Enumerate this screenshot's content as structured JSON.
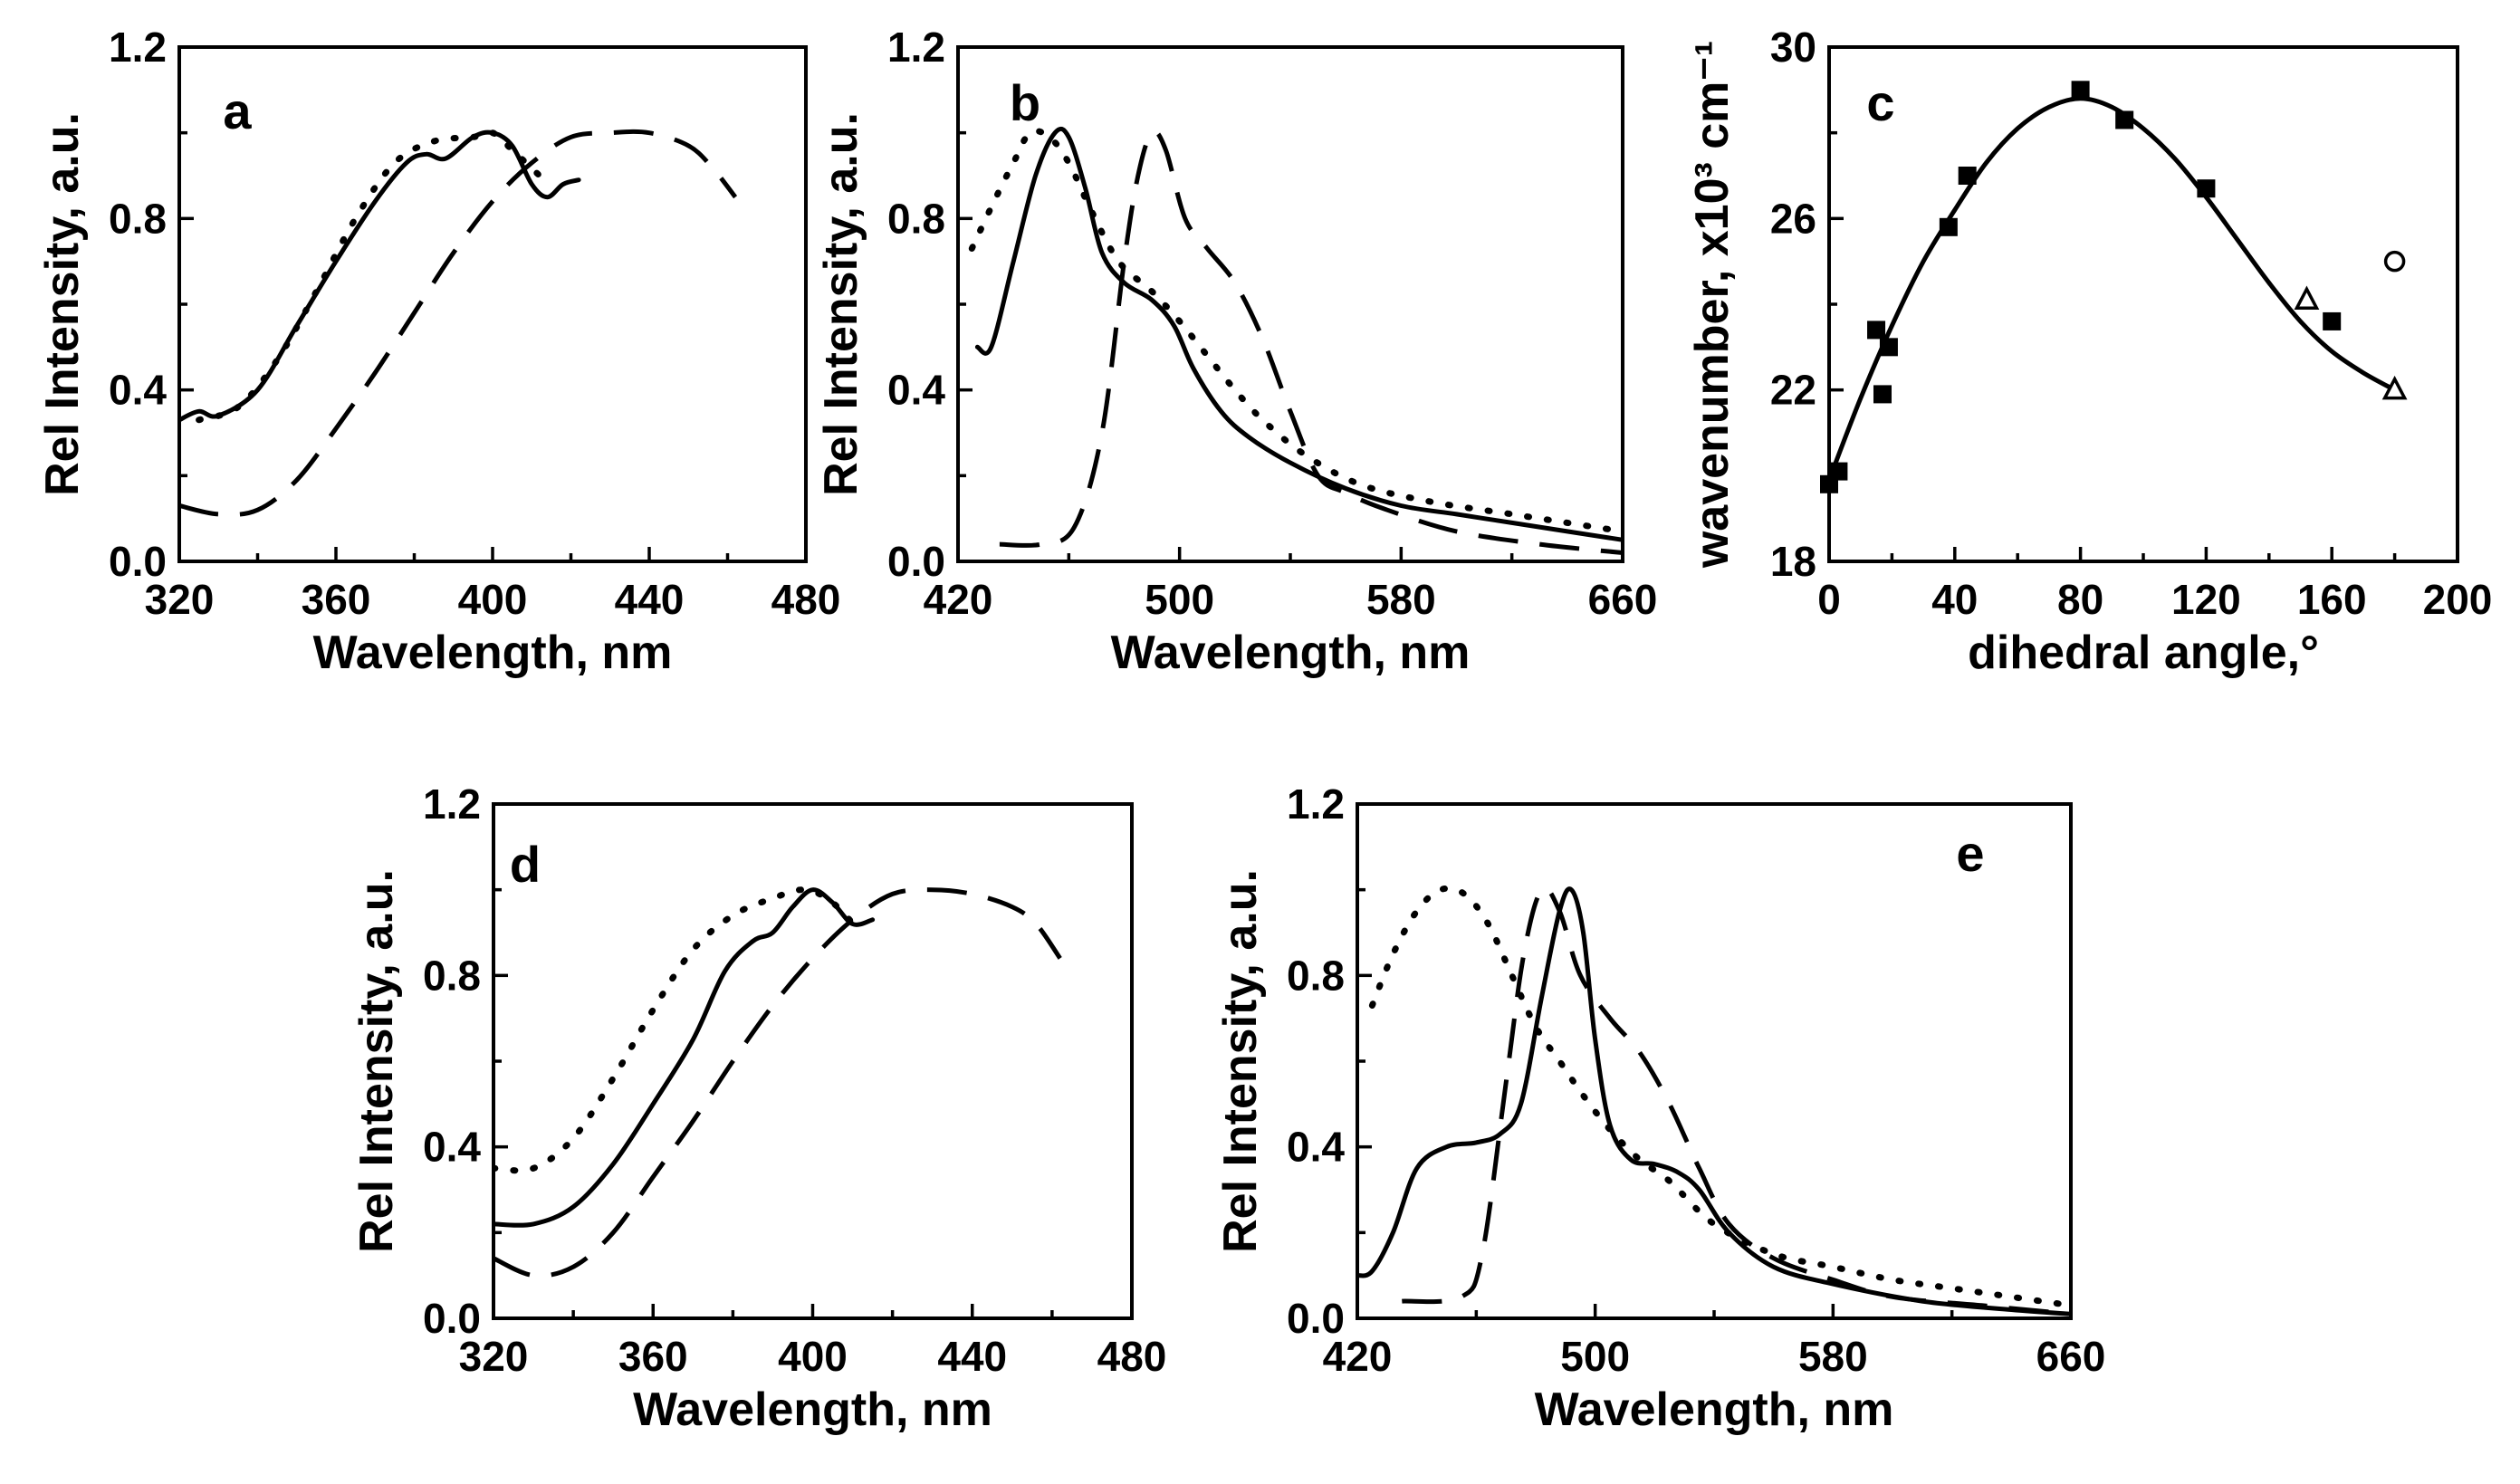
{
  "chart_data": [
    {
      "id": "a",
      "panel_label": "a",
      "type": "line",
      "xlabel": "Wavelength, nm",
      "ylabel": "Rel Intensity, a.u.",
      "xlim": [
        320,
        480
      ],
      "ylim": [
        0.0,
        1.2
      ],
      "xticks": [
        "320",
        "360",
        "400",
        "440",
        "480"
      ],
      "yticks": [
        "0.0",
        "0.4",
        "0.8",
        "1.2"
      ],
      "series": [
        {
          "name": "solid",
          "style": "solid",
          "points": [
            [
              320,
              0.33
            ],
            [
              325,
              0.35
            ],
            [
              330,
              0.34
            ],
            [
              340,
              0.4
            ],
            [
              350,
              0.55
            ],
            [
              360,
              0.7
            ],
            [
              370,
              0.84
            ],
            [
              378,
              0.93
            ],
            [
              383,
              0.95
            ],
            [
              388,
              0.94
            ],
            [
              395,
              0.99
            ],
            [
              400,
              1.0
            ],
            [
              405,
              0.97
            ],
            [
              410,
              0.88
            ],
            [
              414,
              0.85
            ],
            [
              418,
              0.88
            ],
            [
              422,
              0.89
            ]
          ]
        },
        {
          "name": "dash",
          "style": "dash",
          "points": [
            [
              320,
              0.13
            ],
            [
              330,
              0.11
            ],
            [
              340,
              0.12
            ],
            [
              350,
              0.19
            ],
            [
              360,
              0.31
            ],
            [
              370,
              0.44
            ],
            [
              380,
              0.58
            ],
            [
              390,
              0.72
            ],
            [
              400,
              0.84
            ],
            [
              410,
              0.93
            ],
            [
              420,
              0.99
            ],
            [
              430,
              1.0
            ],
            [
              440,
              1.0
            ],
            [
              450,
              0.97
            ],
            [
              456,
              0.92
            ],
            [
              462,
              0.85
            ]
          ]
        },
        {
          "name": "dot",
          "style": "dot",
          "points": [
            [
              325,
              0.33
            ],
            [
              335,
              0.36
            ],
            [
              345,
              0.47
            ],
            [
              355,
              0.63
            ],
            [
              365,
              0.8
            ],
            [
              375,
              0.93
            ],
            [
              385,
              0.98
            ],
            [
              395,
              0.99
            ],
            [
              400,
              1.0
            ],
            [
              405,
              0.96
            ],
            [
              412,
              0.9
            ]
          ]
        }
      ]
    },
    {
      "id": "b",
      "panel_label": "b",
      "type": "line",
      "xlabel": "Wavelength, nm",
      "ylabel": "Rel Intensity, a.u.",
      "xlim": [
        420,
        660
      ],
      "ylim": [
        0.0,
        1.2
      ],
      "xticks": [
        "420",
        "500",
        "580",
        "660"
      ],
      "yticks": [
        "0.0",
        "0.4",
        "0.8",
        "1.2"
      ],
      "series": [
        {
          "name": "solid",
          "style": "solid",
          "points": [
            [
              427,
              0.5
            ],
            [
              432,
              0.5
            ],
            [
              440,
              0.7
            ],
            [
              448,
              0.9
            ],
            [
              455,
              1.0
            ],
            [
              460,
              0.99
            ],
            [
              466,
              0.87
            ],
            [
              472,
              0.72
            ],
            [
              480,
              0.65
            ],
            [
              490,
              0.61
            ],
            [
              498,
              0.55
            ],
            [
              505,
              0.45
            ],
            [
              515,
              0.35
            ],
            [
              525,
              0.29
            ],
            [
              540,
              0.23
            ],
            [
              560,
              0.17
            ],
            [
              580,
              0.13
            ],
            [
              600,
              0.11
            ],
            [
              620,
              0.09
            ],
            [
              640,
              0.07
            ],
            [
              660,
              0.05
            ]
          ]
        },
        {
          "name": "dash",
          "style": "dash",
          "points": [
            [
              435,
              0.04
            ],
            [
              450,
              0.04
            ],
            [
              462,
              0.08
            ],
            [
              472,
              0.3
            ],
            [
              480,
              0.7
            ],
            [
              485,
              0.9
            ],
            [
              490,
              1.0
            ],
            [
              495,
              0.96
            ],
            [
              502,
              0.8
            ],
            [
              510,
              0.73
            ],
            [
              520,
              0.65
            ],
            [
              530,
              0.52
            ],
            [
              540,
              0.35
            ],
            [
              550,
              0.2
            ],
            [
              560,
              0.16
            ],
            [
              575,
              0.12
            ],
            [
              600,
              0.07
            ],
            [
              630,
              0.04
            ],
            [
              660,
              0.02
            ]
          ]
        },
        {
          "name": "dot",
          "style": "dot",
          "points": [
            [
              425,
              0.73
            ],
            [
              433,
              0.84
            ],
            [
              440,
              0.93
            ],
            [
              446,
              1.0
            ],
            [
              453,
              0.99
            ],
            [
              460,
              0.93
            ],
            [
              468,
              0.82
            ],
            [
              478,
              0.7
            ],
            [
              490,
              0.63
            ],
            [
              500,
              0.56
            ],
            [
              510,
              0.48
            ],
            [
              520,
              0.4
            ],
            [
              530,
              0.33
            ],
            [
              545,
              0.25
            ],
            [
              565,
              0.18
            ],
            [
              590,
              0.14
            ],
            [
              620,
              0.11
            ],
            [
              640,
              0.09
            ],
            [
              660,
              0.07
            ]
          ]
        }
      ]
    },
    {
      "id": "c",
      "panel_label": "c",
      "type": "scatter",
      "xlabel": "dihedral angle,°",
      "ylabel": "wavenumber, x10³ cm⁻¹",
      "xlim": [
        0,
        200
      ],
      "ylim": [
        18,
        30
      ],
      "xticks": [
        "0",
        "40",
        "80",
        "120",
        "160",
        "200"
      ],
      "yticks": [
        "18",
        "22",
        "26",
        "30"
      ],
      "fit_curve": [
        [
          0,
          19.9
        ],
        [
          10,
          21.8
        ],
        [
          20,
          23.5
        ],
        [
          30,
          25.0
        ],
        [
          40,
          26.2
        ],
        [
          50,
          27.3
        ],
        [
          60,
          28.1
        ],
        [
          70,
          28.6
        ],
        [
          80,
          28.8
        ],
        [
          90,
          28.6
        ],
        [
          100,
          28.1
        ],
        [
          110,
          27.4
        ],
        [
          120,
          26.5
        ],
        [
          130,
          25.5
        ],
        [
          140,
          24.5
        ],
        [
          150,
          23.6
        ],
        [
          160,
          22.9
        ],
        [
          170,
          22.4
        ],
        [
          180,
          22.0
        ]
      ],
      "points_filled_square": [
        [
          0,
          19.8
        ],
        [
          3,
          20.1
        ],
        [
          15,
          23.4
        ],
        [
          17,
          21.9
        ],
        [
          19,
          23.0
        ],
        [
          38,
          25.8
        ],
        [
          44,
          27.0
        ],
        [
          80,
          29.0
        ],
        [
          94,
          28.3
        ],
        [
          120,
          26.7
        ],
        [
          160,
          23.6
        ]
      ],
      "points_open_triangle": [
        [
          152,
          24.1
        ],
        [
          180,
          22.0
        ]
      ],
      "points_open_circle": [
        [
          180,
          25.0
        ]
      ]
    },
    {
      "id": "d",
      "panel_label": "d",
      "type": "line",
      "xlabel": "Wavelength, nm",
      "ylabel": "Rel Intensity, a.u.",
      "xlim": [
        320,
        480
      ],
      "ylim": [
        0.0,
        1.2
      ],
      "xticks": [
        "320",
        "360",
        "400",
        "440",
        "480"
      ],
      "yticks": [
        "0.0",
        "0.4",
        "0.8",
        "1.2"
      ],
      "series": [
        {
          "name": "solid",
          "style": "solid",
          "points": [
            [
              320,
              0.22
            ],
            [
              330,
              0.22
            ],
            [
              340,
              0.26
            ],
            [
              350,
              0.36
            ],
            [
              360,
              0.5
            ],
            [
              370,
              0.65
            ],
            [
              378,
              0.81
            ],
            [
              385,
              0.88
            ],
            [
              390,
              0.9
            ],
            [
              395,
              0.96
            ],
            [
              400,
              1.0
            ],
            [
              405,
              0.97
            ],
            [
              410,
              0.92
            ],
            [
              415,
              0.93
            ]
          ]
        },
        {
          "name": "dash",
          "style": "dash",
          "points": [
            [
              320,
              0.14
            ],
            [
              330,
              0.1
            ],
            [
              340,
              0.12
            ],
            [
              350,
              0.2
            ],
            [
              360,
              0.33
            ],
            [
              370,
              0.46
            ],
            [
              380,
              0.6
            ],
            [
              390,
              0.73
            ],
            [
              400,
              0.84
            ],
            [
              410,
              0.93
            ],
            [
              420,
              0.99
            ],
            [
              430,
              1.0
            ],
            [
              440,
              0.99
            ],
            [
              450,
              0.96
            ],
            [
              456,
              0.92
            ],
            [
              462,
              0.84
            ]
          ]
        },
        {
          "name": "dot",
          "style": "dot",
          "points": [
            [
              320,
              0.35
            ],
            [
              330,
              0.35
            ],
            [
              340,
              0.42
            ],
            [
              350,
              0.56
            ],
            [
              360,
              0.72
            ],
            [
              370,
              0.86
            ],
            [
              380,
              0.94
            ],
            [
              390,
              0.98
            ],
            [
              398,
              1.0
            ],
            [
              405,
              0.97
            ],
            [
              412,
              0.9
            ]
          ]
        }
      ]
    },
    {
      "id": "e",
      "panel_label": "e",
      "type": "line",
      "xlabel": "Wavelength, nm",
      "ylabel": "Rel Intensity, a.u.",
      "xlim": [
        420,
        660
      ],
      "ylim": [
        0.0,
        1.2
      ],
      "xticks": [
        "420",
        "500",
        "580",
        "660"
      ],
      "yticks": [
        "0.0",
        "0.4",
        "0.8",
        "1.2"
      ],
      "series": [
        {
          "name": "solid",
          "style": "solid",
          "points": [
            [
              420,
              0.1
            ],
            [
              425,
              0.11
            ],
            [
              432,
              0.2
            ],
            [
              440,
              0.35
            ],
            [
              450,
              0.4
            ],
            [
              460,
              0.41
            ],
            [
              468,
              0.43
            ],
            [
              475,
              0.5
            ],
            [
              482,
              0.75
            ],
            [
              488,
              0.95
            ],
            [
              492,
              1.0
            ],
            [
              496,
              0.9
            ],
            [
              500,
              0.65
            ],
            [
              505,
              0.45
            ],
            [
              512,
              0.37
            ],
            [
              520,
              0.36
            ],
            [
              528,
              0.34
            ],
            [
              535,
              0.3
            ],
            [
              545,
              0.2
            ],
            [
              560,
              0.12
            ],
            [
              580,
              0.08
            ],
            [
              610,
              0.04
            ],
            [
              640,
              0.02
            ],
            [
              660,
              0.01
            ]
          ]
        },
        {
          "name": "dash",
          "style": "dash",
          "points": [
            [
              435,
              0.04
            ],
            [
              455,
              0.05
            ],
            [
              462,
              0.15
            ],
            [
              470,
              0.55
            ],
            [
              476,
              0.85
            ],
            [
              482,
              1.0
            ],
            [
              488,
              0.95
            ],
            [
              495,
              0.8
            ],
            [
              505,
              0.7
            ],
            [
              515,
              0.62
            ],
            [
              525,
              0.5
            ],
            [
              535,
              0.35
            ],
            [
              545,
              0.22
            ],
            [
              560,
              0.14
            ],
            [
              580,
              0.09
            ],
            [
              600,
              0.05
            ],
            [
              630,
              0.03
            ],
            [
              660,
              0.01
            ]
          ]
        },
        {
          "name": "dot",
          "style": "dot",
          "points": [
            [
              425,
              0.73
            ],
            [
              432,
              0.85
            ],
            [
              440,
              0.95
            ],
            [
              448,
              1.0
            ],
            [
              456,
              0.99
            ],
            [
              464,
              0.92
            ],
            [
              472,
              0.8
            ],
            [
              480,
              0.68
            ],
            [
              488,
              0.6
            ],
            [
              496,
              0.52
            ],
            [
              505,
              0.44
            ],
            [
              515,
              0.37
            ],
            [
              525,
              0.32
            ],
            [
              540,
              0.22
            ],
            [
              560,
              0.15
            ],
            [
              580,
              0.12
            ],
            [
              600,
              0.09
            ],
            [
              620,
              0.07
            ],
            [
              640,
              0.05
            ],
            [
              660,
              0.03
            ]
          ]
        }
      ]
    }
  ]
}
